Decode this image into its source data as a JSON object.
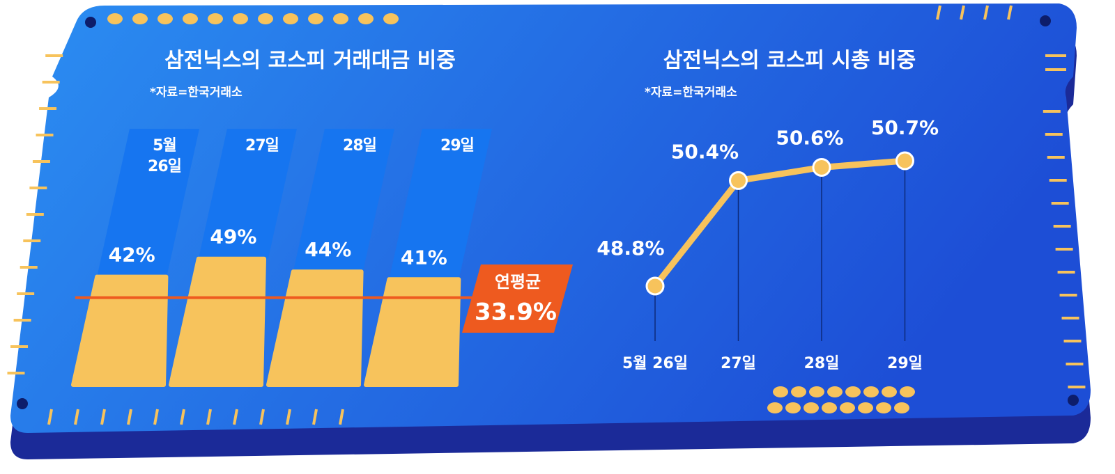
{
  "chart_data": [
    {
      "type": "bar",
      "title": "삼전닉스의 코스피 거래대금 비중",
      "source": "*자료=한국거래소",
      "categories": [
        "5월 26일",
        "27일",
        "28일",
        "29일"
      ],
      "values": [
        42,
        49,
        44,
        41
      ],
      "value_labels": [
        "42%",
        "49%",
        "44%",
        "41%"
      ],
      "color": "#f7c35c",
      "average": {
        "label": "연평균",
        "value": 33.9,
        "value_label": "33.9%",
        "color": "#ee5a1f"
      }
    },
    {
      "type": "line",
      "title": "삼전닉스의 코스피 시총 비중",
      "source": "*자료=한국거래소",
      "categories": [
        "5월 26일",
        "27일",
        "28일",
        "29일"
      ],
      "values": [
        48.8,
        50.4,
        50.6,
        50.7
      ],
      "value_labels": [
        "48.8%",
        "50.4%",
        "50.6%",
        "50.7%"
      ],
      "color": "#f7c35c"
    }
  ]
}
